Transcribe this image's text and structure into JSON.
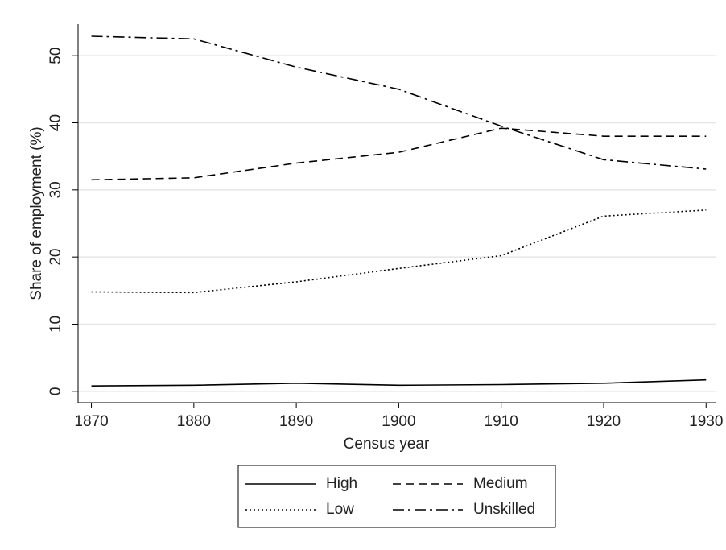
{
  "chart_data": {
    "type": "line",
    "xlabel": "Census year",
    "ylabel": "Share of employment (%)",
    "x": [
      1870,
      1880,
      1890,
      1900,
      1910,
      1920,
      1930
    ],
    "series": [
      {
        "name": "High",
        "color": "#000000",
        "dash": "solid",
        "values": [
          0.8,
          0.9,
          1.2,
          0.9,
          1.0,
          1.2,
          1.7
        ]
      },
      {
        "name": "Medium",
        "color": "#000000",
        "dash": "dashed",
        "values": [
          31.5,
          31.8,
          34.0,
          35.6,
          39.2,
          38.0,
          38.0
        ]
      },
      {
        "name": "Low",
        "color": "#000000",
        "dash": "dotted",
        "values": [
          14.8,
          14.7,
          16.3,
          18.3,
          20.2,
          26.1,
          27.0
        ]
      },
      {
        "name": "Unskilled",
        "color": "#000000",
        "dash": "dashdot",
        "values": [
          52.9,
          52.5,
          48.3,
          45.0,
          39.5,
          34.5,
          33.1
        ]
      }
    ],
    "xlim": [
      1868.7,
      1931
    ],
    "xticks": [
      1870,
      1880,
      1890,
      1900,
      1910,
      1920,
      1930
    ],
    "ylim": [
      -1.7,
      54.7
    ],
    "yticks": [
      0,
      10,
      20,
      30,
      40,
      50
    ],
    "grid": true,
    "legend": "bottom"
  }
}
